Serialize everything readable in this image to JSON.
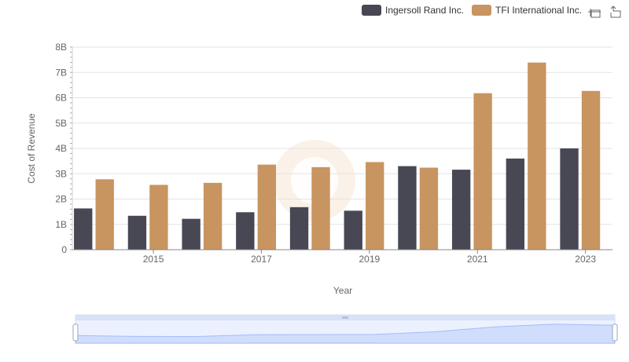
{
  "chart_data": {
    "type": "bar",
    "xlabel": "Year",
    "ylabel": "Cost of Revenue",
    "ylim": [
      0,
      8000000000
    ],
    "yticks": [
      "0",
      "1B",
      "2B",
      "3B",
      "4B",
      "5B",
      "6B",
      "7B",
      "8B"
    ],
    "xticks": [
      "2015",
      "2017",
      "2019",
      "2021",
      "2023"
    ],
    "categories": [
      "2014",
      "2015",
      "2016",
      "2017",
      "2018",
      "2019",
      "2020",
      "2021",
      "2022",
      "2023"
    ],
    "grid": true,
    "legend_position": "top-right",
    "series": [
      {
        "name": "Ingersoll Rand Inc.",
        "color": "#484854",
        "values": [
          1630000000,
          1340000000,
          1220000000,
          1480000000,
          1680000000,
          1540000000,
          3300000000,
          3160000000,
          3600000000,
          4000000000
        ]
      },
      {
        "name": "TFI International Inc.",
        "color": "#c89460",
        "values": [
          2780000000,
          2560000000,
          2640000000,
          3360000000,
          3260000000,
          3460000000,
          3240000000,
          6180000000,
          7390000000,
          6270000000
        ]
      }
    ]
  },
  "toolbar": {
    "zoom_icon": "zoom-select-icon",
    "reset_icon": "zoom-reset-icon"
  }
}
